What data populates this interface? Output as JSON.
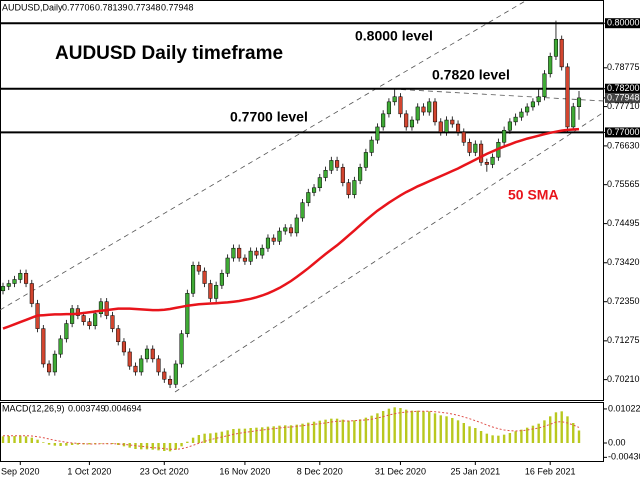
{
  "chart_data": {
    "type": "candlestick",
    "symbol": "AUDUSD,Daily",
    "title": "AUDUSD Daily timeframe",
    "up_color": "#3faa35",
    "down_color": "#d2452f",
    "ylim": [
      0.6965,
      0.805
    ],
    "yticks": [
      {
        "value": 0.8,
        "label": "0.80000"
      },
      {
        "value": 0.78775,
        "label": "0.78775"
      },
      {
        "value": 0.782,
        "label": "0.78200"
      },
      {
        "value": 0.77948,
        "label": "0.77948"
      },
      {
        "value": 0.7771,
        "label": "0.77710"
      },
      {
        "value": 0.77,
        "label": "0.77000"
      },
      {
        "value": 0.7663,
        "label": "0.76630"
      },
      {
        "value": 0.75565,
        "label": "0.75565"
      },
      {
        "value": 0.74495,
        "label": "0.74495"
      },
      {
        "value": 0.7342,
        "label": "0.73420"
      },
      {
        "value": 0.7235,
        "label": "0.72350"
      },
      {
        "value": 0.71275,
        "label": "0.71275"
      },
      {
        "value": 0.7021,
        "label": "0.70210"
      }
    ],
    "levels": [
      {
        "value": 0.8,
        "label": "0.8000 level"
      },
      {
        "value": 0.782,
        "label": "0.7820 level"
      },
      {
        "value": 0.77,
        "label": "0.7700 level"
      }
    ],
    "categories": [
      null,
      null,
      null,
      "Sep 2020",
      null,
      null,
      null,
      null,
      null,
      null,
      null,
      null,
      null,
      null,
      null,
      "1 Oct 2020",
      null,
      null,
      null,
      null,
      null,
      null,
      null,
      null,
      null,
      null,
      null,
      null,
      "23 Oct 2020",
      null,
      null,
      null,
      null,
      null,
      null,
      null,
      null,
      null,
      null,
      null,
      null,
      null,
      "16 Nov 2020",
      null,
      null,
      null,
      null,
      null,
      null,
      null,
      null,
      null,
      null,
      null,
      null,
      "8 Dec 2020",
      null,
      null,
      null,
      null,
      null,
      null,
      null,
      null,
      null,
      null,
      null,
      null,
      null,
      "31 Dec 2020",
      null,
      null,
      null,
      null,
      null,
      null,
      null,
      null,
      null,
      null,
      null,
      null,
      "25 Jan 2021",
      null,
      null,
      null,
      null,
      null,
      null,
      null,
      null,
      null,
      null,
      null,
      null,
      "16 Feb 2021",
      null,
      null,
      null,
      null,
      null
    ],
    "candles": [
      [
        0.7265,
        0.7287,
        0.7255,
        0.7277
      ],
      [
        0.7277,
        0.7295,
        0.7267,
        0.7285
      ],
      [
        0.7285,
        0.7306,
        0.7275,
        0.7296
      ],
      [
        0.7296,
        0.7323,
        0.7286,
        0.7313
      ],
      [
        0.7313,
        0.7323,
        0.7275,
        0.7285
      ],
      [
        0.7285,
        0.7295,
        0.722,
        0.723
      ],
      [
        0.723,
        0.724,
        0.7151,
        0.7161
      ],
      [
        0.7161,
        0.7171,
        0.7054,
        0.7064
      ],
      [
        0.7064,
        0.7074,
        0.7032,
        0.7042
      ],
      [
        0.7042,
        0.7101,
        0.7032,
        0.7091
      ],
      [
        0.7091,
        0.7143,
        0.7081,
        0.7133
      ],
      [
        0.7133,
        0.7185,
        0.7123,
        0.7175
      ],
      [
        0.7175,
        0.7226,
        0.7165,
        0.7216
      ],
      [
        0.7216,
        0.7226,
        0.7187,
        0.7197
      ],
      [
        0.7197,
        0.7207,
        0.717,
        0.718
      ],
      [
        0.718,
        0.719,
        0.7159,
        0.7169
      ],
      [
        0.7169,
        0.7212,
        0.7159,
        0.7202
      ],
      [
        0.7202,
        0.7245,
        0.7192,
        0.7235
      ],
      [
        0.7235,
        0.7245,
        0.7187,
        0.7197
      ],
      [
        0.7197,
        0.7207,
        0.7151,
        0.7161
      ],
      [
        0.7161,
        0.7171,
        0.7115,
        0.7125
      ],
      [
        0.7125,
        0.7135,
        0.7087,
        0.7097
      ],
      [
        0.7097,
        0.7107,
        0.7048,
        0.7058
      ],
      [
        0.7058,
        0.7068,
        0.7032,
        0.7042
      ],
      [
        0.7042,
        0.7088,
        0.7032,
        0.7078
      ],
      [
        0.7078,
        0.7115,
        0.7068,
        0.7105
      ],
      [
        0.7105,
        0.7115,
        0.7068,
        0.7078
      ],
      [
        0.7078,
        0.7088,
        0.7032,
        0.7042
      ],
      [
        0.7042,
        0.7052,
        0.7012,
        0.7022
      ],
      [
        0.7022,
        0.7032,
        0.6998,
        0.7008
      ],
      [
        0.7008,
        0.7074,
        0.6998,
        0.7064
      ],
      [
        0.7064,
        0.7157,
        0.7054,
        0.7147
      ],
      [
        0.7147,
        0.7268,
        0.7137,
        0.7258
      ],
      [
        0.7258,
        0.7345,
        0.7248,
        0.7335
      ],
      [
        0.7335,
        0.7345,
        0.7309,
        0.7319
      ],
      [
        0.7319,
        0.7329,
        0.7275,
        0.7285
      ],
      [
        0.7285,
        0.7295,
        0.7234,
        0.7244
      ],
      [
        0.7244,
        0.729,
        0.7234,
        0.728
      ],
      [
        0.728,
        0.7323,
        0.727,
        0.7313
      ],
      [
        0.7313,
        0.7365,
        0.7303,
        0.7355
      ],
      [
        0.7355,
        0.7392,
        0.7345,
        0.7382
      ],
      [
        0.7382,
        0.7392,
        0.7345,
        0.7355
      ],
      [
        0.7355,
        0.7365,
        0.7336,
        0.7346
      ],
      [
        0.7346,
        0.7384,
        0.7336,
        0.7374
      ],
      [
        0.7374,
        0.7384,
        0.7353,
        0.7363
      ],
      [
        0.7363,
        0.7392,
        0.7353,
        0.7382
      ],
      [
        0.7382,
        0.742,
        0.7372,
        0.741
      ],
      [
        0.741,
        0.742,
        0.7391,
        0.7401
      ],
      [
        0.7401,
        0.7439,
        0.7391,
        0.7429
      ],
      [
        0.7429,
        0.7448,
        0.7419,
        0.7438
      ],
      [
        0.7438,
        0.7448,
        0.7414,
        0.7424
      ],
      [
        0.7424,
        0.7475,
        0.7414,
        0.7465
      ],
      [
        0.7465,
        0.7517,
        0.7455,
        0.7507
      ],
      [
        0.7507,
        0.7545,
        0.7497,
        0.7535
      ],
      [
        0.7535,
        0.7558,
        0.7525,
        0.7548
      ],
      [
        0.7548,
        0.7586,
        0.7538,
        0.7576
      ],
      [
        0.7576,
        0.7606,
        0.7566,
        0.7596
      ],
      [
        0.7596,
        0.7633,
        0.7586,
        0.7623
      ],
      [
        0.7623,
        0.7633,
        0.7594,
        0.7604
      ],
      [
        0.7604,
        0.7614,
        0.7552,
        0.7562
      ],
      [
        0.7562,
        0.7572,
        0.7519,
        0.7529
      ],
      [
        0.7529,
        0.7578,
        0.7519,
        0.7568
      ],
      [
        0.7568,
        0.7614,
        0.7558,
        0.7604
      ],
      [
        0.7604,
        0.7655,
        0.7594,
        0.7645
      ],
      [
        0.7645,
        0.7689,
        0.7635,
        0.7679
      ],
      [
        0.7679,
        0.7725,
        0.7669,
        0.7715
      ],
      [
        0.7715,
        0.7761,
        0.7705,
        0.7751
      ],
      [
        0.7751,
        0.7794,
        0.7741,
        0.7784
      ],
      [
        0.7784,
        0.782,
        0.7774,
        0.7798
      ],
      [
        0.7798,
        0.7808,
        0.7741,
        0.7751
      ],
      [
        0.7751,
        0.7761,
        0.7705,
        0.7715
      ],
      [
        0.7715,
        0.7744,
        0.7705,
        0.7734
      ],
      [
        0.7734,
        0.778,
        0.7724,
        0.777
      ],
      [
        0.777,
        0.778,
        0.7746,
        0.7756
      ],
      [
        0.7756,
        0.7794,
        0.7746,
        0.7784
      ],
      [
        0.7784,
        0.7794,
        0.7719,
        0.7729
      ],
      [
        0.7729,
        0.7739,
        0.7691,
        0.7701
      ],
      [
        0.7701,
        0.7744,
        0.7691,
        0.7734
      ],
      [
        0.7734,
        0.7744,
        0.7713,
        0.7723
      ],
      [
        0.7723,
        0.7733,
        0.7691,
        0.7701
      ],
      [
        0.7701,
        0.7711,
        0.7663,
        0.7673
      ],
      [
        0.7673,
        0.7683,
        0.7635,
        0.7645
      ],
      [
        0.7645,
        0.7678,
        0.7635,
        0.7668
      ],
      [
        0.7668,
        0.7678,
        0.7608,
        0.7618
      ],
      [
        0.7618,
        0.7628,
        0.7592,
        0.7612
      ],
      [
        0.7612,
        0.7642,
        0.7602,
        0.7632
      ],
      [
        0.7632,
        0.7683,
        0.7622,
        0.7673
      ],
      [
        0.7673,
        0.7716,
        0.7663,
        0.7706
      ],
      [
        0.7706,
        0.7739,
        0.7696,
        0.7729
      ],
      [
        0.7729,
        0.7752,
        0.7719,
        0.7742
      ],
      [
        0.7742,
        0.7766,
        0.7732,
        0.7756
      ],
      [
        0.7756,
        0.778,
        0.7746,
        0.777
      ],
      [
        0.777,
        0.7794,
        0.776,
        0.7784
      ],
      [
        0.7784,
        0.782,
        0.7774,
        0.7798
      ],
      [
        0.7798,
        0.7871,
        0.7788,
        0.7861
      ],
      [
        0.7861,
        0.7919,
        0.7851,
        0.7909
      ],
      [
        0.7909,
        0.8007,
        0.7899,
        0.7956
      ],
      [
        0.7956,
        0.7966,
        0.787,
        0.788
      ],
      [
        0.788,
        0.789,
        0.77,
        0.7715
      ],
      [
        0.7715,
        0.7781,
        0.7705,
        0.77706
      ],
      [
        0.77706,
        0.78139,
        0.77348,
        0.77948
      ]
    ],
    "sma": {
      "name": "50 SMA",
      "color": "#e8141b",
      "values": [
        0.7161,
        0.7167,
        0.7173,
        0.7179,
        0.7185,
        0.7191,
        0.7197,
        0.7198,
        0.7199,
        0.72,
        0.72,
        0.7201,
        0.7201,
        0.7202,
        0.7204,
        0.7206,
        0.7208,
        0.721,
        0.7212,
        0.7214,
        0.7216,
        0.7216,
        0.7216,
        0.7215,
        0.7214,
        0.7213,
        0.7212,
        0.7212,
        0.7213,
        0.7215,
        0.7218,
        0.7221,
        0.7224,
        0.7226,
        0.7228,
        0.7229,
        0.723,
        0.7231,
        0.7232,
        0.7233,
        0.7235,
        0.7237,
        0.724,
        0.7243,
        0.7247,
        0.7252,
        0.7258,
        0.7265,
        0.7273,
        0.7282,
        0.7292,
        0.7303,
        0.7315,
        0.7327,
        0.734,
        0.7353,
        0.7366,
        0.7378,
        0.739,
        0.7403,
        0.7417,
        0.7431,
        0.7445,
        0.7459,
        0.7472,
        0.7485,
        0.7496,
        0.7507,
        0.7517,
        0.7527,
        0.7536,
        0.7544,
        0.7552,
        0.7559,
        0.7566,
        0.7573,
        0.758,
        0.7587,
        0.7594,
        0.7601,
        0.7609,
        0.7617,
        0.7625,
        0.7633,
        0.7641,
        0.7648,
        0.7655,
        0.7661,
        0.7667,
        0.7673,
        0.7678,
        0.7683,
        0.7687,
        0.7691,
        0.7695,
        0.7699,
        0.7702,
        0.7705,
        0.7707,
        0.7708,
        0.7709
      ]
    },
    "macd": {
      "name": "MACD(12,26,9)",
      "ylim": [
        -0.0057,
        0.012
      ],
      "yticks": [
        {
          "value": 0.01022,
          "label": "0.01022"
        },
        {
          "value": 0,
          "label": "0.00"
        },
        {
          "value": -0.0043,
          "label": "-0.00430"
        }
      ],
      "color": "#b9c81e",
      "signal_color": "#e0504a",
      "values": [
        0.002,
        0.0021,
        0.0021,
        0.0022,
        0.002,
        0.0016,
        0.001,
        0.0002,
        -0.0005,
        -0.0008,
        -0.0009,
        -0.0008,
        -0.0006,
        -0.0005,
        -0.0004,
        -0.0004,
        -0.0002,
        0,
        -0.0001,
        -0.0003,
        -0.0006,
        -0.001,
        -0.0014,
        -0.0018,
        -0.0019,
        -0.0019,
        -0.002,
        -0.0022,
        -0.0024,
        -0.0025,
        -0.002,
        -0.001,
        0.0004,
        0.0016,
        0.0024,
        0.0028,
        0.0029,
        0.0031,
        0.0034,
        0.0038,
        0.0042,
        0.0043,
        0.0043,
        0.0045,
        0.0046,
        0.0047,
        0.0049,
        0.005,
        0.0052,
        0.0053,
        0.0053,
        0.0055,
        0.0058,
        0.0061,
        0.0064,
        0.0067,
        0.007,
        0.0073,
        0.0073,
        0.007,
        0.0067,
        0.0068,
        0.0071,
        0.0076,
        0.0082,
        0.0089,
        0.0096,
        0.0103,
        0.0107,
        0.0105,
        0.01,
        0.0097,
        0.0097,
        0.0095,
        0.0095,
        0.0089,
        0.0083,
        0.008,
        0.0075,
        0.0068,
        0.006,
        0.005,
        0.0045,
        0.0036,
        0.0028,
        0.0023,
        0.0022,
        0.0025,
        0.003,
        0.0035,
        0.004,
        0.0046,
        0.0052,
        0.0058,
        0.0068,
        0.008,
        0.0092,
        0.0095,
        0.008,
        0.006,
        0.003749
      ],
      "signal": [
        0.0022,
        0.0022,
        0.0022,
        0.0022,
        0.0022,
        0.0021,
        0.0019,
        0.0016,
        0.0012,
        0.0008,
        0.0005,
        0.0002,
        0,
        -0.0001,
        -0.0002,
        -0.0003,
        -0.0003,
        -0.0002,
        -0.0002,
        -0.0002,
        -0.0003,
        -0.0004,
        -0.0006,
        -0.0008,
        -0.001,
        -0.0012,
        -0.0014,
        -0.0015,
        -0.0017,
        -0.0019,
        -0.0019,
        -0.0017,
        -0.0013,
        -0.0007,
        -0.0001,
        0.0005,
        0.001,
        0.0014,
        0.0018,
        0.0022,
        0.0026,
        0.0029,
        0.0032,
        0.0034,
        0.0037,
        0.0039,
        0.0041,
        0.0043,
        0.0045,
        0.0047,
        0.0048,
        0.005,
        0.0052,
        0.0054,
        0.0056,
        0.0058,
        0.006,
        0.0063,
        0.0065,
        0.0066,
        0.0066,
        0.0067,
        0.0068,
        0.0069,
        0.0071,
        0.0075,
        0.0079,
        0.0084,
        0.0088,
        0.0091,
        0.0093,
        0.0094,
        0.0095,
        0.0095,
        0.0095,
        0.0094,
        0.0092,
        0.009,
        0.0087,
        0.0083,
        0.0078,
        0.0073,
        0.0067,
        0.0061,
        0.0054,
        0.0048,
        0.0043,
        0.0039,
        0.0037,
        0.0036,
        0.0037,
        0.0039,
        0.0042,
        0.0045,
        0.005,
        0.0056,
        0.0063,
        0.0064,
        0.006,
        0.0054,
        0.004694
      ]
    }
  }
}
